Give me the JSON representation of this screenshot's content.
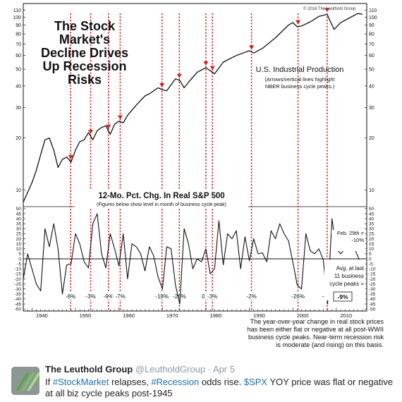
{
  "tweet": {
    "author_name": "The Leuthold Group",
    "handle": "@LeutholdGroup",
    "separator": " · ",
    "date": "Apr 5",
    "text_parts": [
      {
        "t": "If ",
        "tag": false
      },
      {
        "t": "#StockMarket",
        "tag": true
      },
      {
        "t": " relapses, ",
        "tag": false
      },
      {
        "t": "#Recession",
        "tag": true
      },
      {
        "t": " odds rise. ",
        "tag": false
      },
      {
        "t": "$SPX",
        "tag": true
      },
      {
        "t": " YOY price was flat or negative at all biz cycle peaks post-1945",
        "tag": false
      }
    ]
  },
  "chart_data": [
    {
      "type": "line",
      "title": "The Stock Market's Decline Drives Up Recession Risks",
      "title_lines": [
        "The Stock",
        "Market's",
        "Decline Drives",
        "Up Recession",
        "Risks"
      ],
      "copyright": "© 2016 The Leuthold Group",
      "series_label": "U.S. Industrial Production",
      "series_note_lines": [
        "(Arrows/vertical lines highlight",
        "NBER business cycle peaks.)"
      ],
      "y_scale": "log",
      "ylim": [
        8,
        120
      ],
      "xlim": [
        1938,
        2017
      ],
      "y_ticks": [
        10,
        20,
        30,
        40,
        50,
        60,
        70,
        80,
        90,
        100,
        110
      ],
      "x": [
        1938,
        1940,
        1941,
        1942,
        1943,
        1944,
        1945,
        1946,
        1947,
        1948,
        1949,
        1950,
        1951,
        1952,
        1953,
        1954,
        1955,
        1956,
        1957,
        1958,
        1959,
        1960,
        1961,
        1962,
        1964,
        1966,
        1967,
        1969,
        1970,
        1971,
        1973,
        1974,
        1975,
        1976,
        1978,
        1980,
        1981,
        1982,
        1984,
        1987,
        1990,
        1991,
        1993,
        1996,
        1999,
        2000,
        2001,
        2002,
        2004,
        2006,
        2007.9,
        2008.5,
        2009.5,
        2011,
        2013,
        2014.9,
        2016
      ],
      "values": [
        8.5,
        11,
        13,
        16,
        19.5,
        20,
        17,
        13.5,
        15,
        15.5,
        14.5,
        17,
        19,
        19.5,
        21.5,
        19.5,
        22,
        23,
        23.5,
        21,
        24,
        25,
        24.5,
        27,
        31,
        35,
        36,
        39,
        38,
        37.5,
        44,
        43,
        39,
        42,
        48,
        51,
        49,
        47,
        55,
        60,
        64,
        62,
        66,
        76,
        90,
        93,
        88,
        89,
        94,
        101,
        104,
        96,
        85,
        93,
        99,
        105,
        104
      ],
      "peaks": [
        1948.9,
        1953.5,
        1957.6,
        1960.3,
        1969.9,
        1973.9,
        1980.0,
        1981.5,
        1990.5,
        2001.2,
        2007.9
      ]
    },
    {
      "type": "line",
      "title": "12-Mo. Pct. Chg. In Real S&P 500",
      "subtitle": "(Figures below show level in month of business cycle peak)",
      "ylim": [
        -52,
        52
      ],
      "y_ticks": [
        -50,
        -45,
        -40,
        -35,
        -30,
        -25,
        -20,
        -15,
        -10,
        -5,
        0,
        5,
        10,
        15,
        20,
        25,
        30,
        35,
        40,
        45,
        50
      ],
      "x_ticks": [
        1940,
        1950,
        1960,
        1970,
        1980,
        1990,
        2000,
        2010
      ],
      "x": [
        1938,
        1939,
        1940,
        1941,
        1942,
        1943,
        1944,
        1945,
        1946,
        1947,
        1948,
        1949,
        1950,
        1951,
        1952,
        1953,
        1954,
        1955,
        1956,
        1957,
        1958,
        1959,
        1960,
        1961,
        1962,
        1963,
        1964,
        1965,
        1966,
        1967,
        1968,
        1969,
        1970,
        1971,
        1972,
        1973,
        1974,
        1975,
        1976,
        1977,
        1978,
        1979,
        1980,
        1981,
        1982,
        1983,
        1984,
        1985,
        1986,
        1987,
        1988,
        1989,
        1990,
        1991,
        1992,
        1993,
        1994,
        1995,
        1996,
        1997,
        1998,
        1999,
        2000,
        2001,
        2002,
        2003,
        2004,
        2005,
        2006,
        2007,
        2008,
        2009,
        2010,
        2011,
        2012,
        2013,
        2014,
        2015,
        2016
      ],
      "values": [
        -20,
        5,
        -10,
        -25,
        -32,
        30,
        12,
        35,
        10,
        -35,
        -6,
        -5,
        25,
        15,
        -3,
        -9,
        35,
        45,
        5,
        -9,
        25,
        10,
        -7,
        25,
        -20,
        15,
        12,
        5,
        -12,
        12,
        3,
        -18,
        -30,
        12,
        10,
        -26,
        -45,
        30,
        15,
        -10,
        0,
        -3,
        10,
        -15,
        -10,
        38,
        -6,
        25,
        20,
        28,
        -10,
        22,
        -2,
        20,
        5,
        6,
        -3,
        28,
        20,
        35,
        25,
        18,
        -3,
        -26,
        -30,
        25,
        8,
        5,
        10,
        -1,
        -45,
        40,
        10,
        5,
        10,
        22,
        12,
        2,
        -10
      ],
      "peak_labels": [
        "-6%",
        "-3%",
        "-9%",
        "-7%",
        "-18%",
        "-26%",
        "0%",
        "-3%",
        "-2%",
        "-26%",
        "-1%"
      ],
      "current_point": {
        "label": "Feb. 29th =",
        "value_text": "-10%",
        "value": -10
      },
      "average_note_lines": [
        "Avg. at last",
        "11 business",
        "cycle peaks ="
      ],
      "average_value": "-9%",
      "caption_lines": [
        "The year-over-year change in real stock prices",
        "has been either flat or negative at all post-WWII",
        "business cycle peaks. Near-term recession risk",
        "is moderate (and rising) on this basis."
      ]
    }
  ],
  "colors": {
    "line": "#111111",
    "peak_marker": "#d42020",
    "current_dot": "#1f4fa0",
    "hashtag": "#1b6fb0"
  }
}
